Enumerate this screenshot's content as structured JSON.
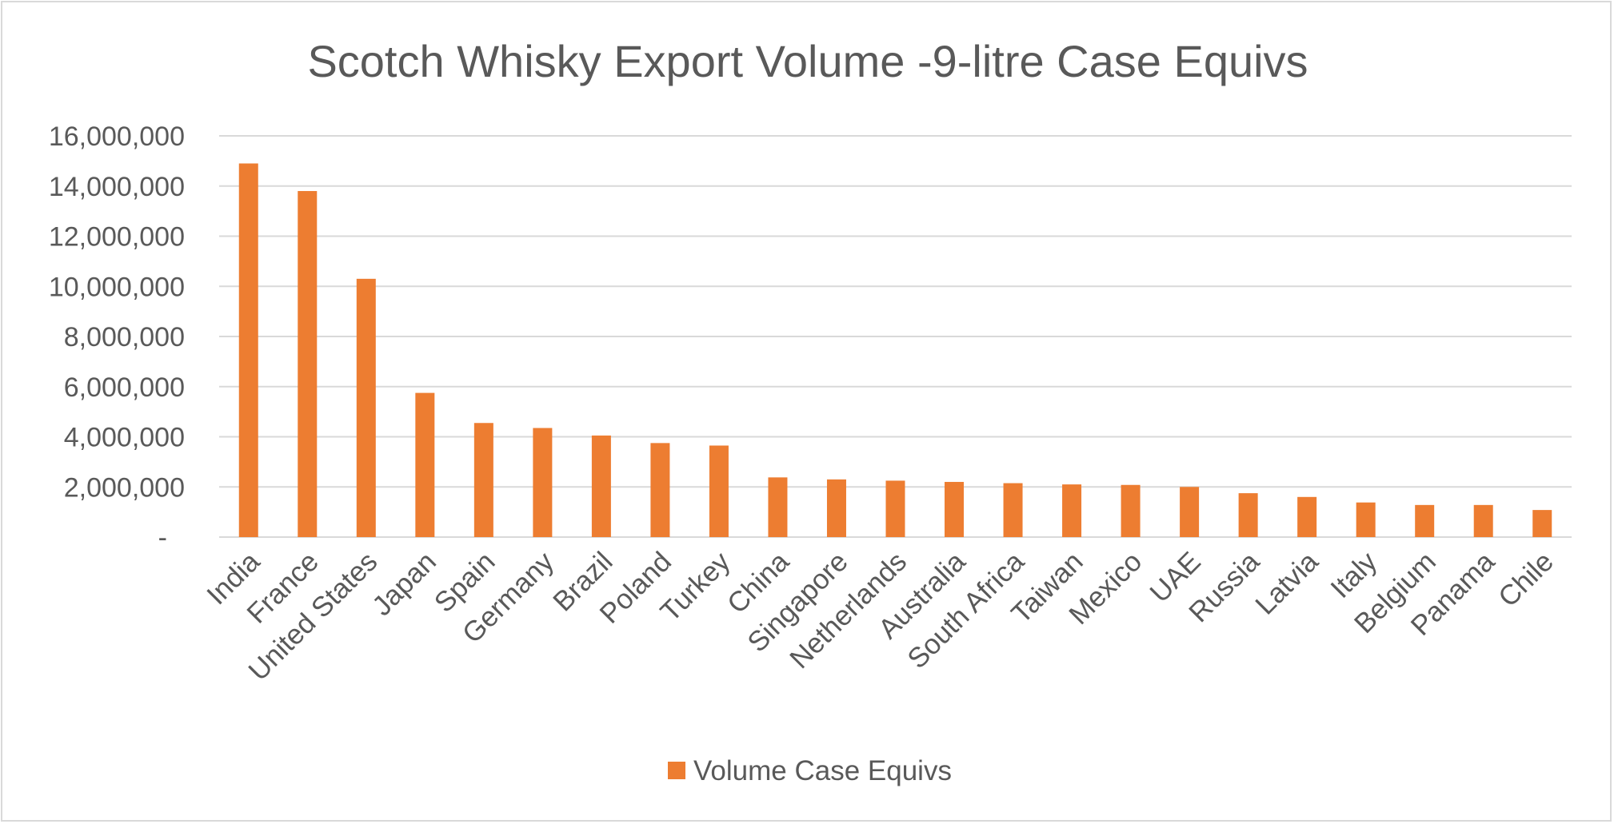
{
  "chart_data": {
    "type": "bar",
    "title": "Scotch Whisky Export Volume -9-litre Case Equivs",
    "xlabel": "",
    "ylabel": "",
    "ylim": [
      0,
      16000000
    ],
    "y_ticks": [
      0,
      2000000,
      4000000,
      6000000,
      8000000,
      10000000,
      12000000,
      14000000,
      16000000
    ],
    "y_tick_labels": [
      "-",
      "2,000,000",
      "4,000,000",
      "6,000,000",
      "8,000,000",
      "10,000,000",
      "12,000,000",
      "14,000,000",
      "16,000,000"
    ],
    "grid": true,
    "legend_position": "bottom",
    "categories": [
      "India",
      "France",
      "United States",
      "Japan",
      "Spain",
      "Germany",
      "Brazil",
      "Poland",
      "Turkey",
      "China",
      "Singapore",
      "Netherlands",
      "Australia",
      "South Africa",
      "Taiwan",
      "Mexico",
      "UAE",
      "Russia",
      "Latvia",
      "Italy",
      "Belgium",
      "Panama",
      "Chile"
    ],
    "series": [
      {
        "name": "Volume Case Equivs",
        "color": "#ed7d31",
        "values": [
          14900000,
          13800000,
          10300000,
          5750000,
          4550000,
          4350000,
          4050000,
          3750000,
          3650000,
          2380000,
          2300000,
          2250000,
          2200000,
          2150000,
          2100000,
          2080000,
          2000000,
          1750000,
          1600000,
          1380000,
          1280000,
          1280000,
          1080000
        ]
      }
    ]
  }
}
